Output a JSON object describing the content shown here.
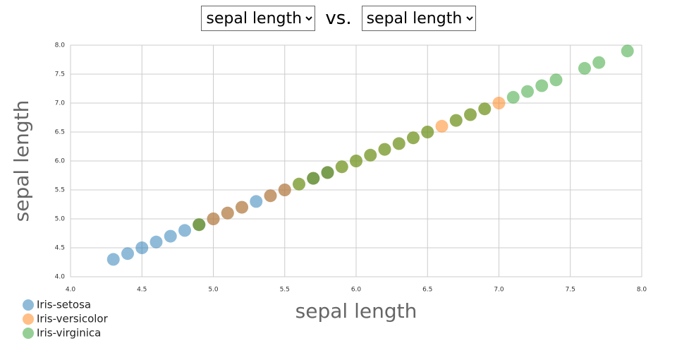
{
  "controls": {
    "y_field": "sepal length",
    "separator": "vs.",
    "x_field": "sepal length"
  },
  "chart_data": {
    "type": "scatter",
    "xlabel": "sepal length",
    "ylabel": "sepal length",
    "xlim": [
      4,
      8
    ],
    "ylim": [
      4,
      8
    ],
    "xticks": [
      {
        "value": 4,
        "label": "4.0"
      },
      4.5,
      {
        "value": 5,
        "label": "5.0"
      },
      5.5,
      {
        "value": 6,
        "label": "6.0"
      },
      6.5,
      {
        "value": 7,
        "label": "7.0"
      },
      7.5,
      {
        "value": 8,
        "label": "8.0"
      }
    ],
    "yticks": [
      {
        "value": 4,
        "label": "4.0"
      },
      4.5,
      {
        "value": 5,
        "label": "5.0"
      },
      5.5,
      {
        "value": 6,
        "label": "6.0"
      },
      6.5,
      {
        "value": 7,
        "label": "7.0"
      },
      7.5,
      {
        "value": 8,
        "label": "8.0"
      }
    ],
    "grid": true,
    "legend": "bottom-left",
    "series": [
      {
        "name": "Iris-setosa",
        "color": "#1f77b4",
        "x": [
          4.3,
          4.4,
          4.5,
          4.6,
          4.7,
          4.8,
          4.9,
          5.0,
          5.1,
          5.2,
          5.3,
          5.4,
          5.5,
          5.7,
          5.8
        ],
        "values": [
          4.3,
          4.4,
          4.5,
          4.6,
          4.7,
          4.8,
          4.9,
          5.0,
          5.1,
          5.2,
          5.3,
          5.4,
          5.5,
          5.7,
          5.8
        ]
      },
      {
        "name": "Iris-versicolor",
        "color": "#ff7f0e",
        "x": [
          4.9,
          5.0,
          5.1,
          5.2,
          5.4,
          5.5,
          5.6,
          5.7,
          5.8,
          5.9,
          6.0,
          6.1,
          6.2,
          6.3,
          6.4,
          6.5,
          6.6,
          6.7,
          6.8,
          6.9,
          7.0
        ],
        "values": [
          4.9,
          5.0,
          5.1,
          5.2,
          5.4,
          5.5,
          5.6,
          5.7,
          5.8,
          5.9,
          6.0,
          6.1,
          6.2,
          6.3,
          6.4,
          6.5,
          6.6,
          6.7,
          6.8,
          6.9,
          7.0
        ]
      },
      {
        "name": "Iris-virginica",
        "color": "#2ca02c",
        "x": [
          4.9,
          5.6,
          5.7,
          5.8,
          5.9,
          6.0,
          6.1,
          6.2,
          6.3,
          6.4,
          6.5,
          6.7,
          6.8,
          6.9,
          7.1,
          7.2,
          7.3,
          7.4,
          7.6,
          7.7,
          7.9
        ],
        "values": [
          4.9,
          5.6,
          5.7,
          5.8,
          5.9,
          6.0,
          6.1,
          6.2,
          6.3,
          6.4,
          6.5,
          6.7,
          6.8,
          6.9,
          7.1,
          7.2,
          7.3,
          7.4,
          7.6,
          7.7,
          7.9
        ]
      }
    ]
  }
}
